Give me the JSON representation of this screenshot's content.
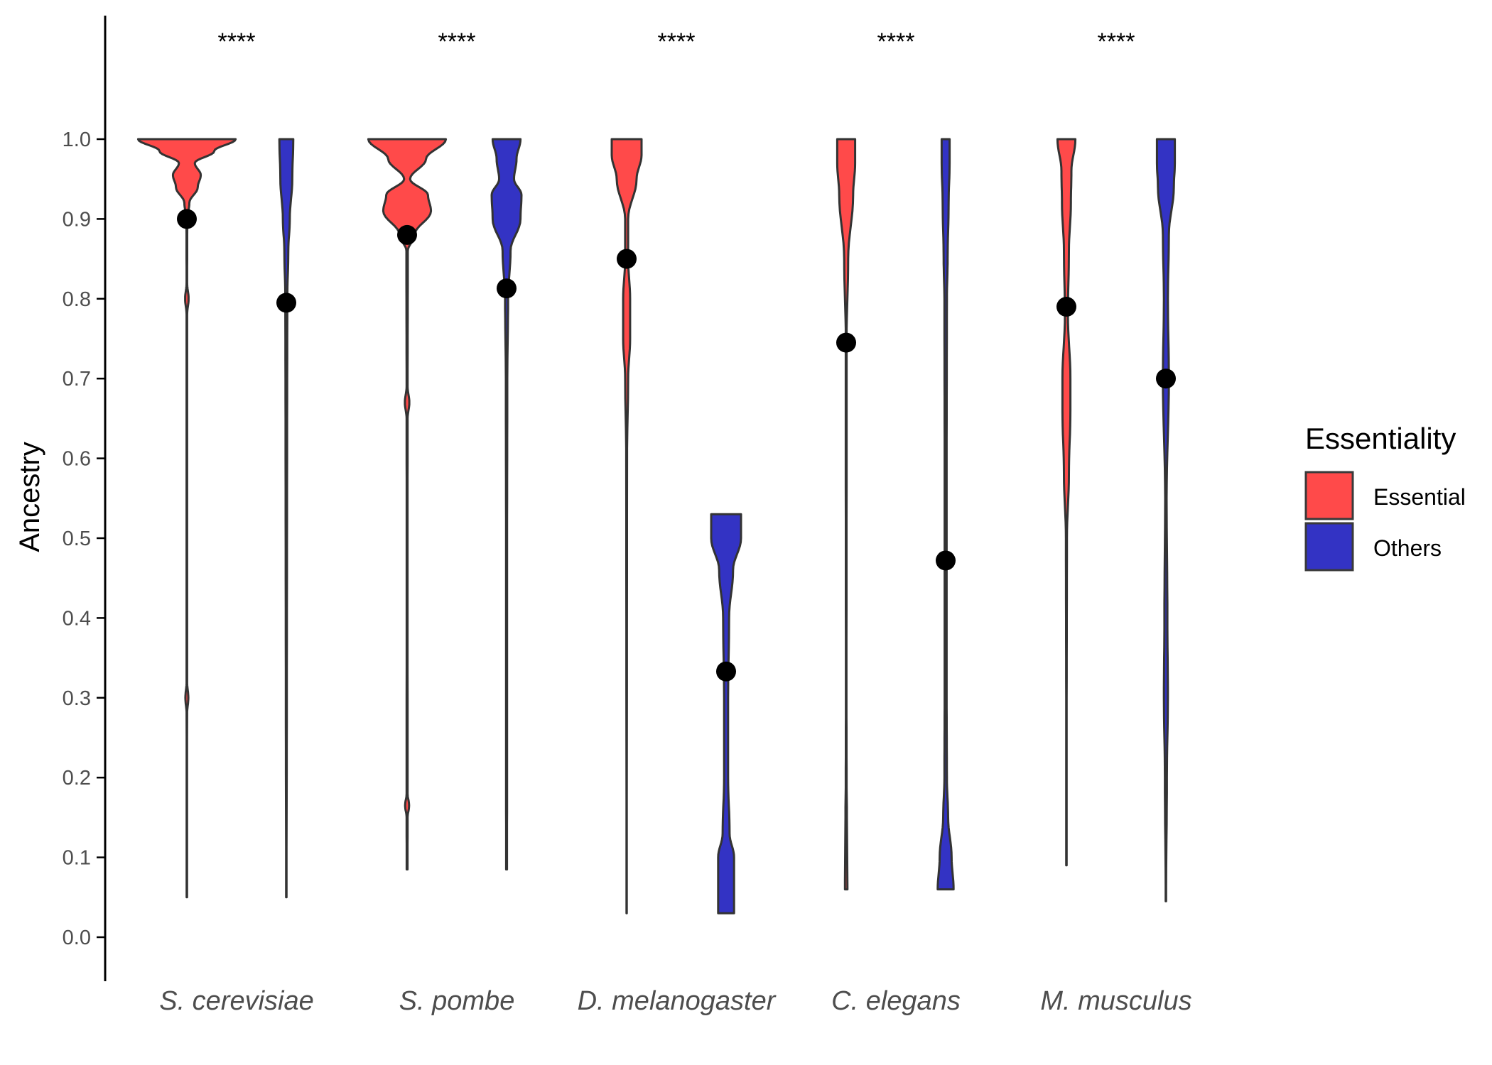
{
  "chart_data": {
    "type": "violin",
    "ylabel": "Ancestry",
    "xlabel": "",
    "ylim": [
      -0.05,
      1.15
    ],
    "yticks": [
      "0.0",
      "0.1",
      "0.2",
      "0.3",
      "0.4",
      "0.5",
      "0.6",
      "0.7",
      "0.8",
      "0.9",
      "1.0"
    ],
    "grid": false,
    "categories": [
      "S. cerevisiae",
      "S. pombe",
      "D. melanogaster",
      "C. elegans",
      "M. musculus"
    ],
    "significance": [
      "****",
      "****",
      "****",
      "****",
      "****"
    ],
    "legend": {
      "title": "Essentiality",
      "position": "right",
      "entries": [
        {
          "label": "Essential",
          "color": "#ff4a4a"
        },
        {
          "label": "Others",
          "color": "#3333c4"
        }
      ]
    },
    "series": [
      {
        "name": "Essential",
        "color": "#ff4a4a",
        "medians": [
          0.9,
          0.88,
          0.85,
          0.745,
          0.79
        ],
        "ranges": [
          [
            0.05,
            1.0
          ],
          [
            0.085,
            1.0
          ],
          [
            0.03,
            1.0
          ],
          [
            0.06,
            1.0
          ],
          [
            0.09,
            1.0
          ]
        ],
        "density_profiles": [
          [
            [
              0.05,
              0.004
            ],
            [
              0.28,
              0.005
            ],
            [
              0.3,
              0.03
            ],
            [
              0.32,
              0.005
            ],
            [
              0.6,
              0.006
            ],
            [
              0.78,
              0.006
            ],
            [
              0.8,
              0.035
            ],
            [
              0.82,
              0.006
            ],
            [
              0.9,
              0.008
            ],
            [
              0.92,
              0.05
            ],
            [
              0.94,
              0.22
            ],
            [
              0.955,
              0.28
            ],
            [
              0.97,
              0.16
            ],
            [
              0.985,
              0.55
            ],
            [
              1.0,
              0.98
            ]
          ],
          [
            [
              0.085,
              0.008
            ],
            [
              0.15,
              0.01
            ],
            [
              0.165,
              0.04
            ],
            [
              0.18,
              0.01
            ],
            [
              0.5,
              0.008
            ],
            [
              0.65,
              0.01
            ],
            [
              0.67,
              0.045
            ],
            [
              0.69,
              0.01
            ],
            [
              0.86,
              0.015
            ],
            [
              0.88,
              0.15
            ],
            [
              0.91,
              0.48
            ],
            [
              0.93,
              0.42
            ],
            [
              0.95,
              0.06
            ],
            [
              0.975,
              0.38
            ],
            [
              1.0,
              0.78
            ]
          ],
          [
            [
              0.03,
              0.002
            ],
            [
              0.6,
              0.008
            ],
            [
              0.7,
              0.03
            ],
            [
              0.75,
              0.07
            ],
            [
              0.8,
              0.07
            ],
            [
              0.85,
              0.03
            ],
            [
              0.9,
              0.03
            ],
            [
              0.95,
              0.2
            ],
            [
              0.98,
              0.3
            ],
            [
              1.0,
              0.3
            ]
          ],
          [
            [
              0.06,
              0.025
            ],
            [
              0.15,
              0.015
            ],
            [
              0.2,
              0.008
            ],
            [
              0.3,
              0.006
            ],
            [
              0.6,
              0.008
            ],
            [
              0.75,
              0.008
            ],
            [
              0.85,
              0.04
            ],
            [
              0.93,
              0.14
            ],
            [
              0.97,
              0.18
            ],
            [
              1.0,
              0.18
            ]
          ],
          [
            [
              0.09,
              0.005
            ],
            [
              0.3,
              0.005
            ],
            [
              0.5,
              0.01
            ],
            [
              0.58,
              0.05
            ],
            [
              0.66,
              0.08
            ],
            [
              0.7,
              0.08
            ],
            [
              0.78,
              0.03
            ],
            [
              0.86,
              0.05
            ],
            [
              0.92,
              0.09
            ],
            [
              0.96,
              0.1
            ],
            [
              1.0,
              0.18
            ]
          ]
        ]
      },
      {
        "name": "Others",
        "color": "#3333c4",
        "medians": [
          0.795,
          0.813,
          0.333,
          0.472,
          0.7
        ],
        "ranges": [
          [
            0.05,
            1.0
          ],
          [
            0.085,
            1.0
          ],
          [
            0.03,
            0.53
          ],
          [
            0.06,
            1.0
          ],
          [
            0.045,
            1.0
          ]
        ],
        "density_profiles": [
          [
            [
              0.05,
              0.004
            ],
            [
              0.3,
              0.01
            ],
            [
              0.6,
              0.015
            ],
            [
              0.8,
              0.02
            ],
            [
              0.86,
              0.04
            ],
            [
              0.9,
              0.07
            ],
            [
              0.95,
              0.12
            ],
            [
              1.0,
              0.14
            ]
          ],
          [
            [
              0.085,
              0.008
            ],
            [
              0.2,
              0.01
            ],
            [
              0.5,
              0.01
            ],
            [
              0.7,
              0.015
            ],
            [
              0.8,
              0.03
            ],
            [
              0.86,
              0.08
            ],
            [
              0.9,
              0.28
            ],
            [
              0.93,
              0.3
            ],
            [
              0.95,
              0.15
            ],
            [
              0.975,
              0.2
            ],
            [
              1.0,
              0.28
            ]
          ],
          [
            [
              0.03,
              0.16
            ],
            [
              0.1,
              0.16
            ],
            [
              0.13,
              0.07
            ],
            [
              0.2,
              0.04
            ],
            [
              0.3,
              0.04
            ],
            [
              0.4,
              0.06
            ],
            [
              0.46,
              0.14
            ],
            [
              0.5,
              0.3
            ],
            [
              0.53,
              0.3
            ]
          ],
          [
            [
              0.06,
              0.16
            ],
            [
              0.1,
              0.12
            ],
            [
              0.15,
              0.05
            ],
            [
              0.2,
              0.025
            ],
            [
              0.3,
              0.02
            ],
            [
              0.47,
              0.02
            ],
            [
              0.6,
              0.02
            ],
            [
              0.8,
              0.025
            ],
            [
              0.85,
              0.04
            ],
            [
              0.92,
              0.06
            ],
            [
              0.97,
              0.08
            ],
            [
              1.0,
              0.08
            ]
          ],
          [
            [
              0.045,
              0.004
            ],
            [
              0.2,
              0.02
            ],
            [
              0.3,
              0.04
            ],
            [
              0.4,
              0.03
            ],
            [
              0.55,
              0.015
            ],
            [
              0.7,
              0.06
            ],
            [
              0.8,
              0.04
            ],
            [
              0.88,
              0.06
            ],
            [
              0.94,
              0.16
            ],
            [
              0.97,
              0.18
            ],
            [
              1.0,
              0.18
            ]
          ]
        ]
      }
    ]
  }
}
